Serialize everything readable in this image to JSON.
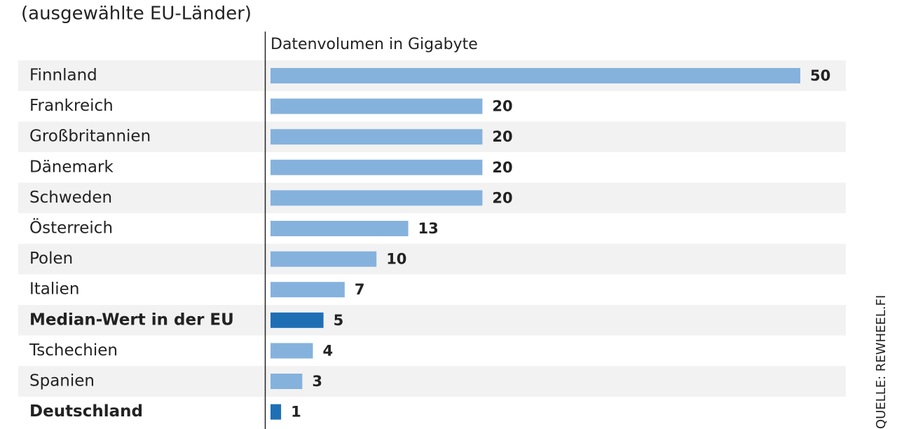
{
  "chart_data": {
    "type": "bar",
    "orientation": "horizontal",
    "subtitle": "(ausgewählte EU-Länder)",
    "x_label": "Datenvolumen in Gigabyte",
    "source": "QUELLE: REWHEEL.FI",
    "categories": [
      "Finnland",
      "Frankreich",
      "Großbritannien",
      "Dänemark",
      "Schweden",
      "Österreich",
      "Polen",
      "Italien",
      "Median-Wert in der EU",
      "Tschechien",
      "Spanien",
      "Deutschland"
    ],
    "values": [
      50,
      20,
      20,
      20,
      20,
      13,
      10,
      7,
      5,
      4,
      3,
      1
    ],
    "color": "#85b2dd",
    "highlight": {
      "indices": [
        8,
        11
      ],
      "color": "#1f6fb5"
    },
    "xlim": [
      0,
      50
    ],
    "row_shading": "#f2f2f2"
  }
}
